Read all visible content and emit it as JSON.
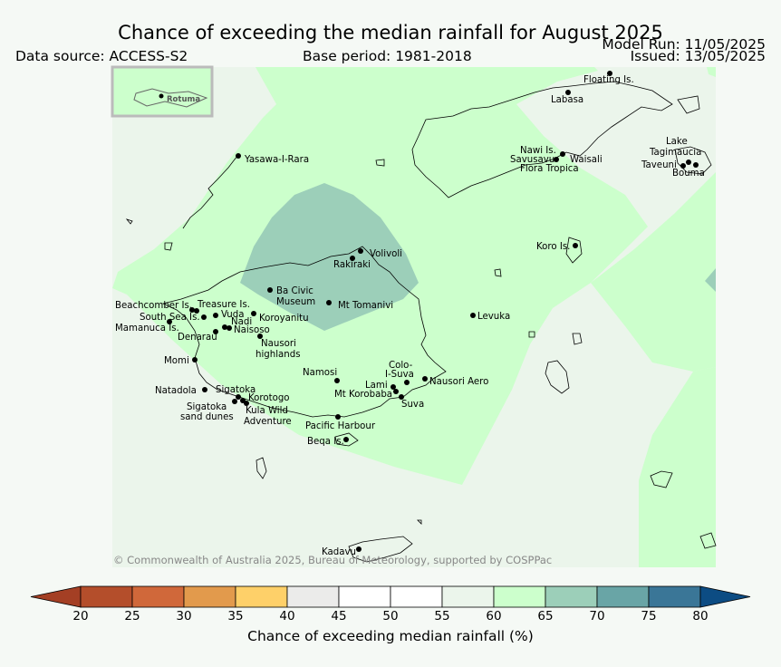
{
  "header": {
    "title": "Chance of exceeding the median rainfall for August 2025",
    "data_source": "Data source: ACCESS-S2",
    "base_period": "Base period: 1981-2018",
    "model_run": "Model Run: 11/05/2025",
    "issued": "Issued: 13/05/2025"
  },
  "map": {
    "inset_label": "Rotuma",
    "copyright": "© Commonwealth of Australia 2025, Bureau of Meteorology, supported by COSPPac",
    "places": [
      {
        "name": "Floating Is."
      },
      {
        "name": "Labasa"
      },
      {
        "name": "Yasawa-I-Rara"
      },
      {
        "name": "Nawi Is."
      },
      {
        "name": "Savusavu"
      },
      {
        "name": "Waisali"
      },
      {
        "name": "Flora Tropica"
      },
      {
        "name": "Lake"
      },
      {
        "name": "Tagimaucia"
      },
      {
        "name": "Taveuni"
      },
      {
        "name": "Bouma"
      },
      {
        "name": "Koro Is."
      },
      {
        "name": "Volivoli"
      },
      {
        "name": "Rakiraki"
      },
      {
        "name": "Ba Civic"
      },
      {
        "name": "Museum"
      },
      {
        "name": "Mt Tomanivi"
      },
      {
        "name": "Beachcomber Is."
      },
      {
        "name": "Treasure Is."
      },
      {
        "name": "South Sea Is."
      },
      {
        "name": "Vuda"
      },
      {
        "name": "Koroyanitu"
      },
      {
        "name": "Nadi"
      },
      {
        "name": "Mamanuca Is."
      },
      {
        "name": "Naisoso"
      },
      {
        "name": "Denarau"
      },
      {
        "name": "Nausori"
      },
      {
        "name": "highlands"
      },
      {
        "name": "Levuka"
      },
      {
        "name": "Momi"
      },
      {
        "name": "Namosi"
      },
      {
        "name": "Colo-"
      },
      {
        "name": "I-Suva"
      },
      {
        "name": "Nausori Aero"
      },
      {
        "name": "Lami"
      },
      {
        "name": "Mt Korobaba"
      },
      {
        "name": "Suva"
      },
      {
        "name": "Natadola"
      },
      {
        "name": "Sigatoka"
      },
      {
        "name": "Korotogo"
      },
      {
        "name": "Sigatoka"
      },
      {
        "name": "sand dunes"
      },
      {
        "name": "Kula Wild"
      },
      {
        "name": "Adventure"
      },
      {
        "name": "Pacific Harbour"
      },
      {
        "name": "Beqa Is."
      },
      {
        "name": "Kadavu"
      }
    ],
    "colors": {
      "cat_55_60": "#ebf5eb",
      "cat_60_65": "#ccffcc",
      "cat_65_70": "#9ccfb9"
    }
  },
  "colorbar": {
    "label": "Chance of exceeding median rainfall (%)",
    "ticks": [
      "20",
      "25",
      "30",
      "35",
      "40",
      "45",
      "50",
      "55",
      "60",
      "65",
      "70",
      "75",
      "80"
    ],
    "colors": [
      "#a43f24",
      "#b44e2b",
      "#d0683a",
      "#e29a4c",
      "#fed069",
      "#ebebea",
      "#ffffff",
      "#ffffff",
      "#ebf5eb",
      "#ccffcc",
      "#9ccfb9",
      "#69a5a6",
      "#3a7697",
      "#0c4c83"
    ]
  }
}
